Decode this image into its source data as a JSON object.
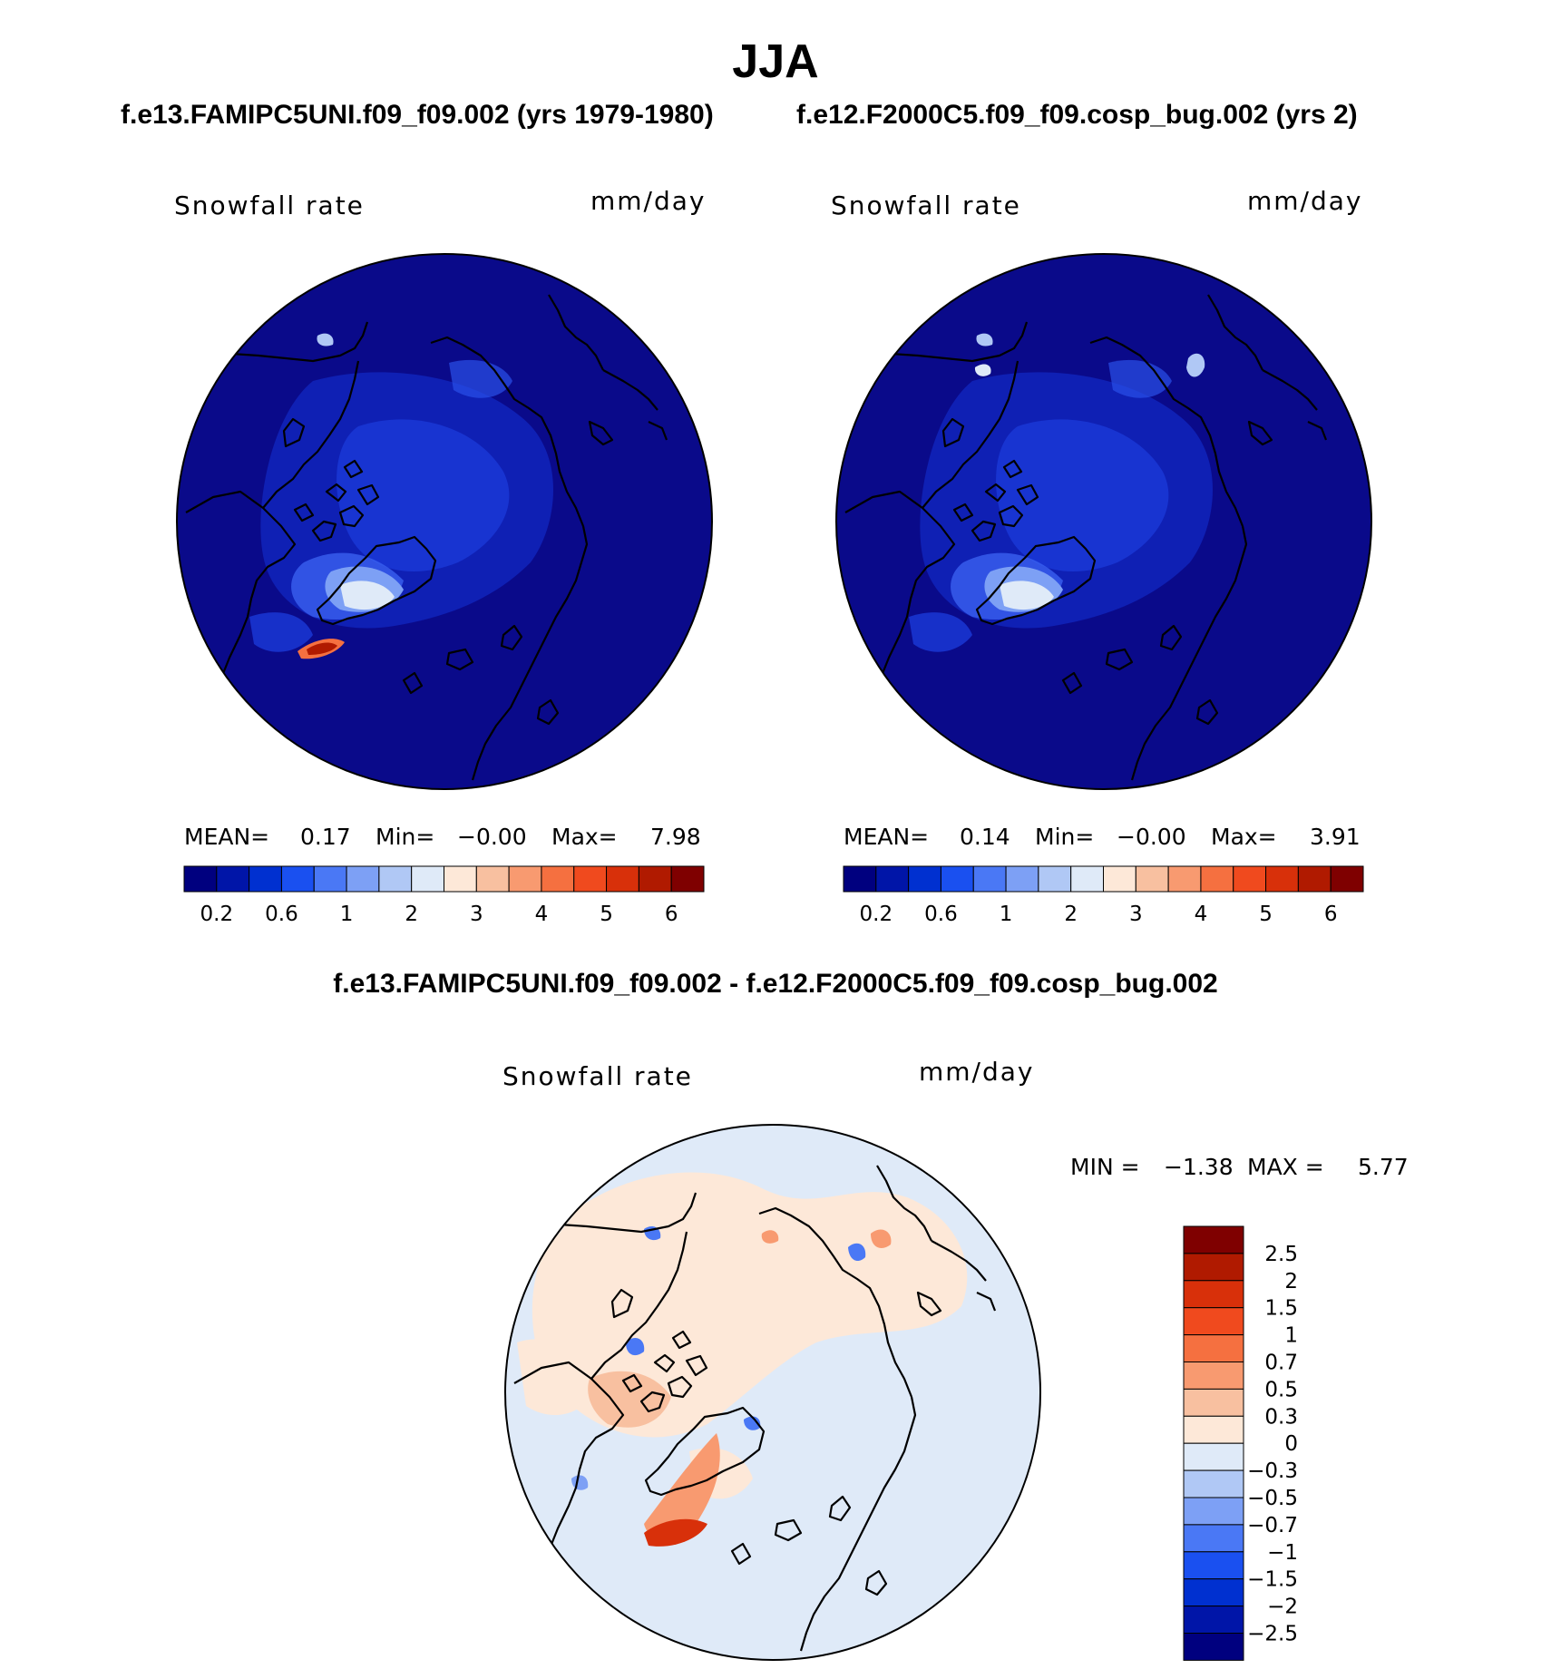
{
  "title": "JJA",
  "case1": "f.e13.FAMIPC5UNI.f09_f09.002 (yrs 1979-1980)",
  "case2": "f.e12.F2000C5.f09_f09.cosp_bug.002 (yrs 2)",
  "diff_title": "f.e13.FAMIPC5UNI.f09_f09.002 - f.e12.F2000C5.f09_f09.cosp_bug.002",
  "panel1": {
    "variable": "Snowfall rate",
    "units": "mm/day",
    "stats": {
      "mean_label": "MEAN=",
      "mean": "0.17",
      "min_label": "Min=",
      "min": "−0.00",
      "max_label": "Max=",
      "max": "7.98"
    }
  },
  "panel2": {
    "variable": "Snowfall rate",
    "units": "mm/day",
    "stats": {
      "mean_label": "MEAN=",
      "mean": "0.14",
      "min_label": "Min=",
      "min": "−0.00",
      "max_label": "Max=",
      "max": "3.91"
    }
  },
  "panel3": {
    "variable": "Snowfall rate",
    "units": "mm/day",
    "stats": {
      "min_label": "MIN =",
      "min": "−1.38",
      "max_label": "MAX =",
      "max": "5.77"
    }
  },
  "colorbar_abs": {
    "colors": [
      "#00007f",
      "#0015a8",
      "#0030d0",
      "#1a50f0",
      "#4a78f5",
      "#7da0f5",
      "#b0c8f5",
      "#dfeaf8",
      "#fde8d8",
      "#f8c0a0",
      "#f89a70",
      "#f57040",
      "#f04a1e",
      "#d8300a",
      "#b01a00",
      "#7f0000"
    ],
    "labels": [
      "0.2",
      "0.6",
      "1",
      "2",
      "3",
      "4",
      "5",
      "6"
    ]
  },
  "colorbar_diff": {
    "colors": [
      "#00007f",
      "#0015a8",
      "#0030d0",
      "#1a50f0",
      "#4a78f5",
      "#7da0f5",
      "#b0c8f5",
      "#dfeaf8",
      "#fde8d8",
      "#f8c0a0",
      "#f89a70",
      "#f57040",
      "#f04a1e",
      "#d8300a",
      "#b01a00",
      "#7f0000"
    ],
    "labels": [
      "2.5",
      "2",
      "1.5",
      "1",
      "0.7",
      "0.5",
      "0.3",
      "0",
      "−0.3",
      "−0.5",
      "−0.7",
      "−1",
      "−1.5",
      "−2",
      "−2.5"
    ]
  }
}
